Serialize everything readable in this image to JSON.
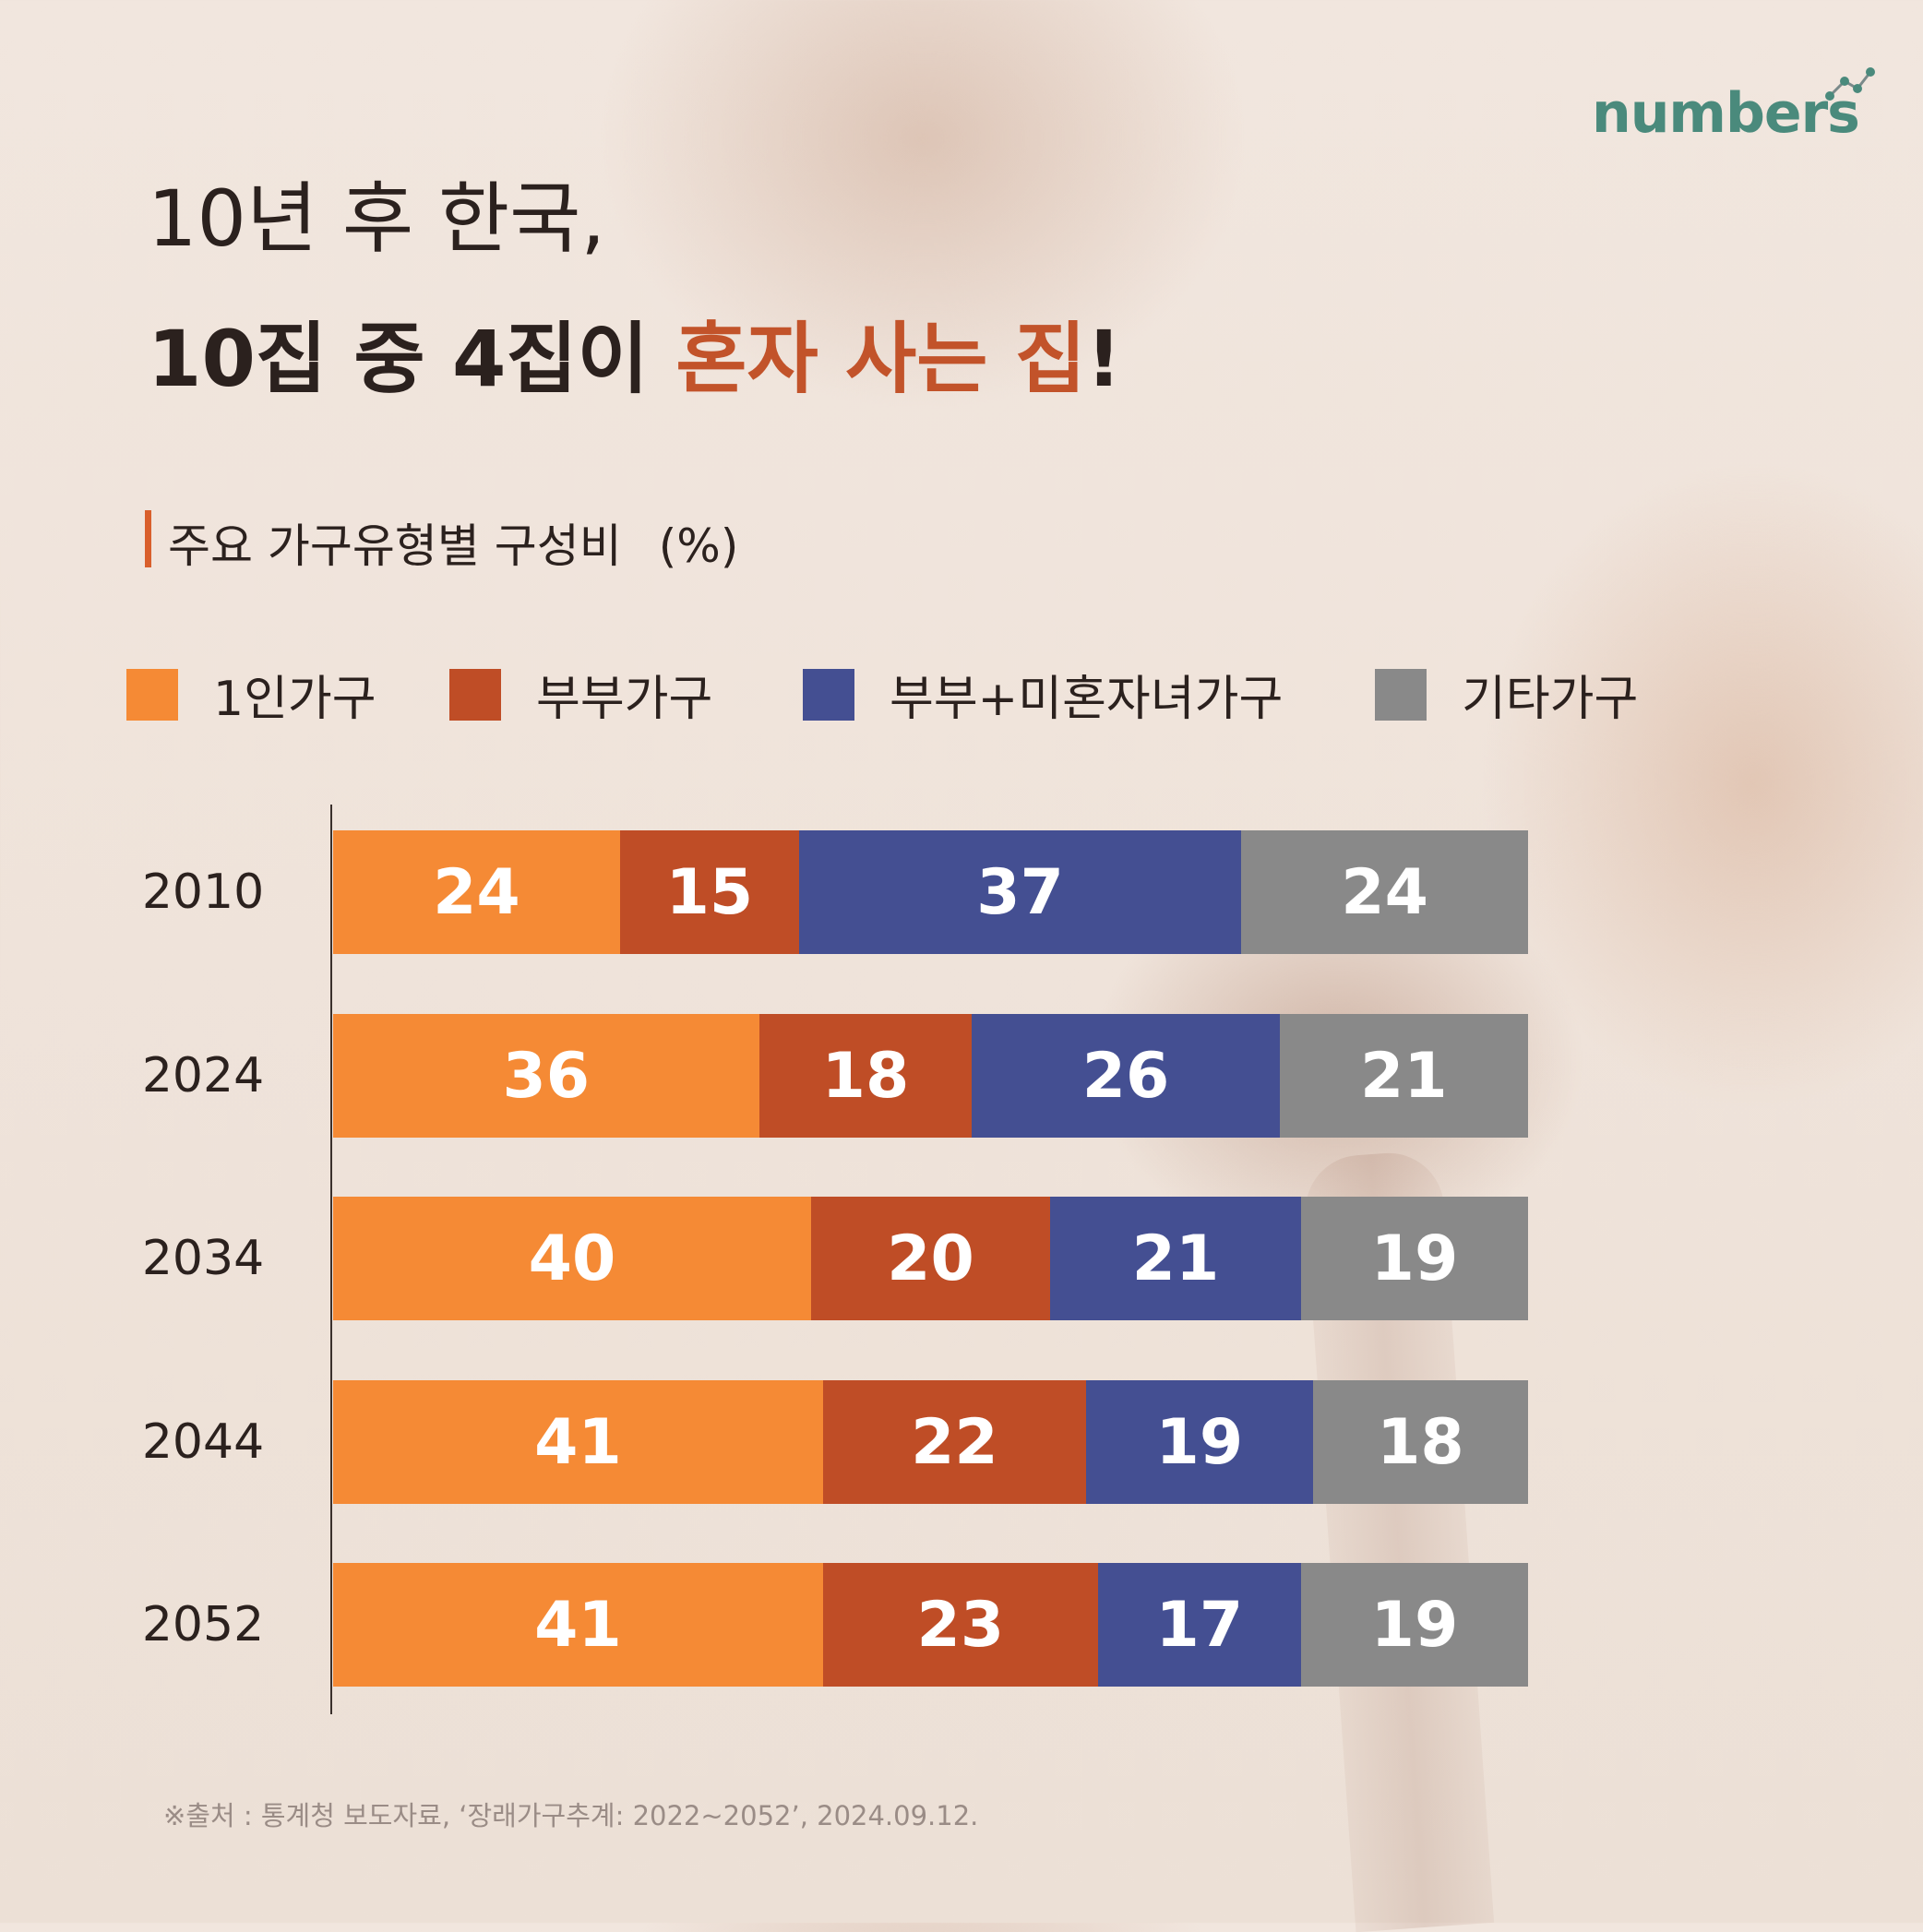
{
  "brand": "numbers",
  "headline": {
    "line1": "10년 후 한국,",
    "line2_prefix": "10집 중 4집이 ",
    "line2_highlight": "혼자 사는 집",
    "line2_suffix": "!"
  },
  "colors": {
    "one_person": "#f58a35",
    "couple": "#bf4d26",
    "couple_children": "#444f92",
    "other": "#898989",
    "highlight": "#c2532a"
  },
  "source": "※출처 : 통계청 보도자료, ‘장래가구추계: 2022~2052’, 2024.09.12.",
  "chart_data": {
    "type": "bar",
    "orientation": "horizontal",
    "stacked": true,
    "title": "주요 가구유형별 구성비",
    "unit": "(%)",
    "legend_position": "top",
    "categories": [
      "2010",
      "2024",
      "2034",
      "2044",
      "2052"
    ],
    "series": [
      {
        "name": "1인가구",
        "color": "#f58a35",
        "values": [
          24,
          36,
          40,
          41,
          41
        ]
      },
      {
        "name": "부부가구",
        "color": "#bf4d26",
        "values": [
          15,
          18,
          20,
          22,
          23
        ]
      },
      {
        "name": "부부+미혼자녀가구",
        "color": "#444f92",
        "values": [
          37,
          26,
          21,
          19,
          17
        ]
      },
      {
        "name": "기타가구",
        "color": "#898989",
        "values": [
          24,
          21,
          19,
          18,
          19
        ]
      }
    ]
  }
}
